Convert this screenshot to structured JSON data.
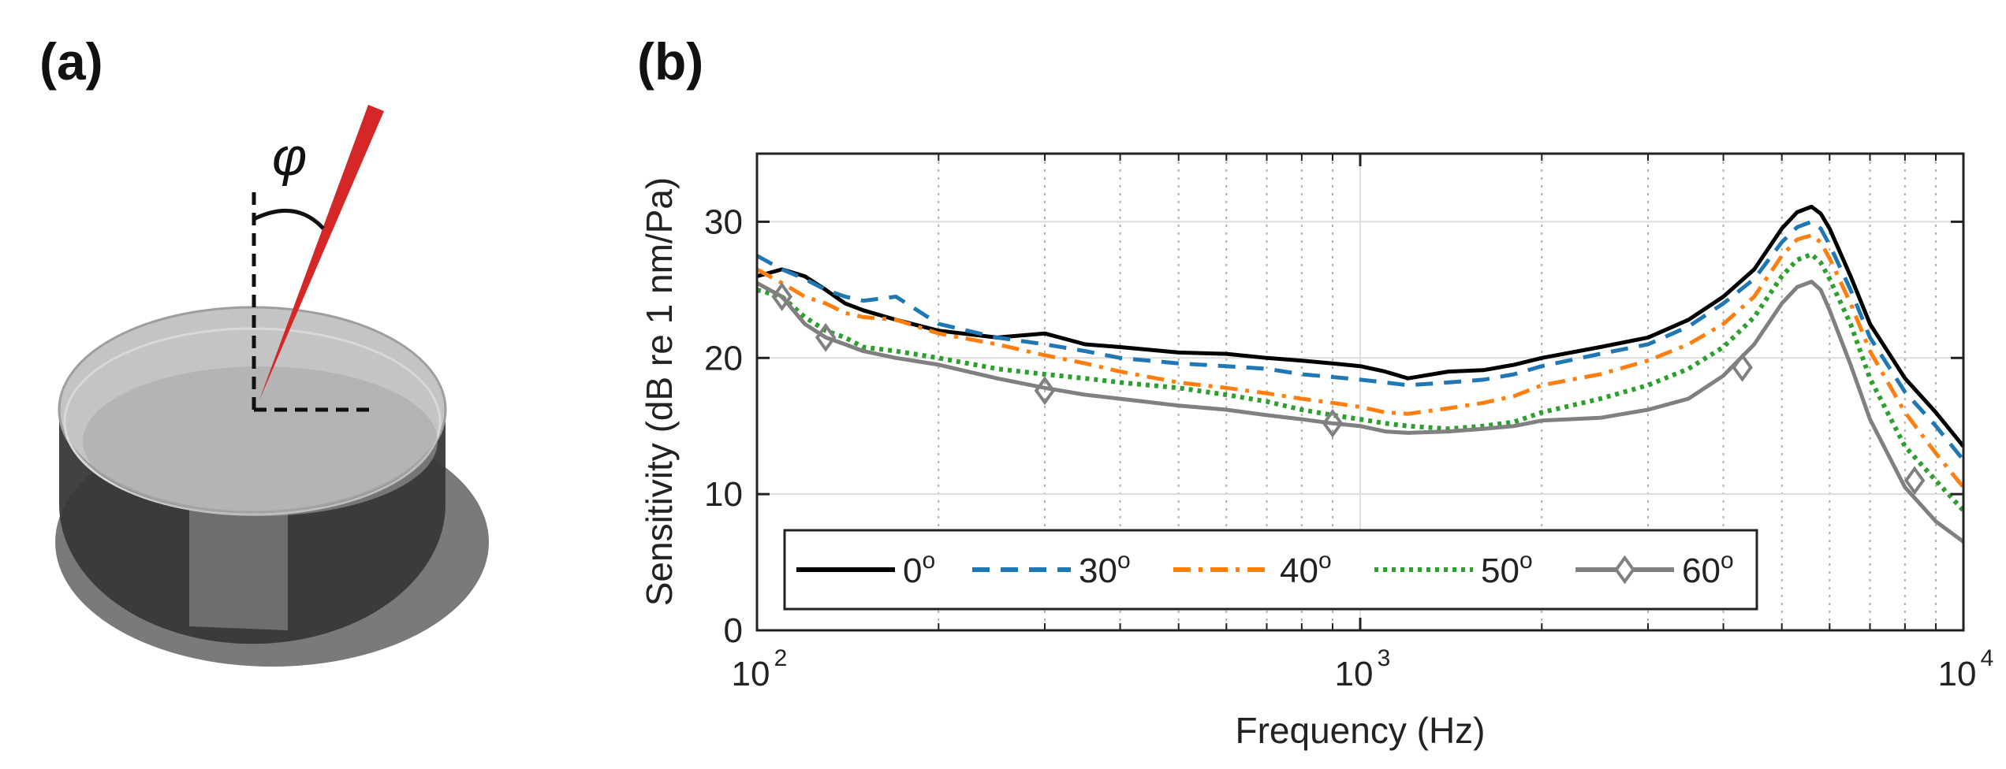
{
  "panel_a": {
    "label": "(a)",
    "angle_symbol": "φ",
    "colors": {
      "needle": "#d62728",
      "disc_top": "#c0c0c0",
      "disc_side": "#3a3a3a",
      "disc_stripe": "#6e6e6e",
      "shadow": "#7a7a7a"
    }
  },
  "panel_b": {
    "label": "(b)"
  },
  "chart_data": {
    "type": "line",
    "xlabel": "Frequency (Hz)",
    "ylabel": "Sensitivity (dB re 1 nm/Pa)",
    "xscale": "log",
    "xlim": [
      100,
      10000
    ],
    "ylim": [
      0,
      35
    ],
    "yticks": [
      0,
      10,
      20,
      30
    ],
    "xticks": [
      {
        "value": 100,
        "base": "10",
        "exp": "2"
      },
      {
        "value": 1000,
        "base": "10",
        "exp": "3"
      },
      {
        "value": 10000,
        "base": "10",
        "exp": "4"
      }
    ],
    "grid": true,
    "legend": {
      "placement": "bottom-left",
      "orientation": "horizontal"
    },
    "series": [
      {
        "name": "0",
        "name_sup": "o",
        "color": "#000000",
        "style": "solid",
        "marker": "none",
        "x": [
          100,
          110,
          120,
          130,
          140,
          150,
          170,
          200,
          250,
          300,
          350,
          400,
          500,
          600,
          700,
          800,
          900,
          1000,
          1100,
          1200,
          1400,
          1600,
          1800,
          2000,
          2500,
          3000,
          3500,
          4000,
          4500,
          5000,
          5300,
          5600,
          5800,
          6000,
          6500,
          7000,
          8000,
          9000,
          10000
        ],
        "y": [
          26.0,
          26.5,
          26.0,
          25.0,
          24.0,
          23.5,
          22.8,
          22.0,
          21.5,
          21.8,
          21.0,
          20.8,
          20.4,
          20.3,
          20.0,
          19.8,
          19.6,
          19.4,
          19.0,
          18.5,
          19.0,
          19.1,
          19.5,
          20.0,
          20.8,
          21.5,
          22.8,
          24.5,
          26.5,
          29.5,
          30.7,
          31.1,
          30.6,
          29.5,
          26.0,
          22.5,
          18.5,
          16.0,
          13.5
        ]
      },
      {
        "name": "30",
        "name_sup": "o",
        "color": "#1f77b4",
        "style": "dashed",
        "marker": "none",
        "x": [
          100,
          110,
          120,
          130,
          140,
          150,
          170,
          200,
          250,
          300,
          350,
          400,
          500,
          600,
          700,
          800,
          900,
          1000,
          1100,
          1200,
          1400,
          1600,
          1800,
          2000,
          2500,
          3000,
          3500,
          4000,
          4500,
          5000,
          5300,
          5600,
          5800,
          6000,
          6500,
          7000,
          8000,
          9000,
          10000
        ],
        "y": [
          27.5,
          26.5,
          25.8,
          25.0,
          24.5,
          24.2,
          24.5,
          22.5,
          21.5,
          21.0,
          20.5,
          20.0,
          19.6,
          19.4,
          19.2,
          18.8,
          18.6,
          18.4,
          18.2,
          18.0,
          18.2,
          18.4,
          18.8,
          19.4,
          20.3,
          21.0,
          22.3,
          24.0,
          25.8,
          28.5,
          29.6,
          30.0,
          29.5,
          28.3,
          25.0,
          21.5,
          17.5,
          15.0,
          12.5
        ]
      },
      {
        "name": "40",
        "name_sup": "o",
        "color": "#ff7f0e",
        "style": "dashdot",
        "marker": "none",
        "x": [
          100,
          110,
          120,
          130,
          140,
          150,
          170,
          200,
          250,
          300,
          350,
          400,
          500,
          600,
          700,
          800,
          900,
          1000,
          1100,
          1200,
          1400,
          1600,
          1800,
          2000,
          2500,
          3000,
          3500,
          4000,
          4500,
          5000,
          5300,
          5600,
          5800,
          6000,
          6500,
          7000,
          8000,
          9000,
          10000
        ],
        "y": [
          26.5,
          25.5,
          24.5,
          24.0,
          23.3,
          23.0,
          22.8,
          21.8,
          21.0,
          20.2,
          19.6,
          19.0,
          18.2,
          17.8,
          17.4,
          17.0,
          16.7,
          16.4,
          16.0,
          15.9,
          16.3,
          16.7,
          17.2,
          18.0,
          18.8,
          19.8,
          21.0,
          22.5,
          24.5,
          27.5,
          28.7,
          29.0,
          28.5,
          27.3,
          24.0,
          20.5,
          16.0,
          13.0,
          10.5
        ]
      },
      {
        "name": "50",
        "name_sup": "o",
        "color": "#2ca02c",
        "style": "dotted",
        "marker": "none",
        "x": [
          100,
          110,
          120,
          130,
          140,
          150,
          170,
          200,
          250,
          300,
          350,
          400,
          500,
          600,
          700,
          800,
          900,
          1000,
          1100,
          1200,
          1400,
          1600,
          1800,
          2000,
          2500,
          3000,
          3500,
          4000,
          4500,
          5000,
          5300,
          5600,
          5800,
          6000,
          6500,
          7000,
          8000,
          9000,
          10000
        ],
        "y": [
          25.0,
          24.5,
          23.0,
          22.0,
          21.5,
          20.8,
          20.5,
          20.0,
          19.2,
          18.8,
          18.5,
          18.2,
          17.8,
          17.3,
          16.8,
          16.2,
          15.8,
          15.5,
          15.2,
          15.0,
          14.8,
          15.0,
          15.3,
          16.0,
          17.0,
          18.0,
          19.2,
          20.8,
          23.0,
          26.0,
          27.2,
          27.6,
          27.0,
          25.8,
          22.5,
          18.5,
          13.5,
          11.0,
          8.8
        ]
      },
      {
        "name": "60",
        "name_sup": "o",
        "color": "#808080",
        "style": "solid",
        "marker": "diamond",
        "x": [
          100,
          110,
          120,
          130,
          140,
          150,
          170,
          200,
          250,
          300,
          350,
          400,
          500,
          600,
          700,
          800,
          900,
          1000,
          1100,
          1200,
          1400,
          1600,
          1800,
          2000,
          2500,
          3000,
          3500,
          4000,
          4500,
          5000,
          5300,
          5600,
          5800,
          6000,
          6500,
          7000,
          8000,
          9000,
          10000
        ],
        "y": [
          25.5,
          24.5,
          22.5,
          21.5,
          21.0,
          20.5,
          20.0,
          19.5,
          18.5,
          17.8,
          17.3,
          17.0,
          16.5,
          16.2,
          15.8,
          15.5,
          15.2,
          15.0,
          14.6,
          14.5,
          14.6,
          14.8,
          15.0,
          15.4,
          15.6,
          16.2,
          17.0,
          18.7,
          21.0,
          24.0,
          25.2,
          25.6,
          25.0,
          23.5,
          19.5,
          15.5,
          10.5,
          8.0,
          6.5
        ],
        "marker_x": [
          110,
          130,
          300,
          900,
          4300,
          8300
        ],
        "marker_y": [
          24.5,
          21.5,
          17.6,
          15.2,
          19.3,
          11.0
        ]
      }
    ]
  }
}
